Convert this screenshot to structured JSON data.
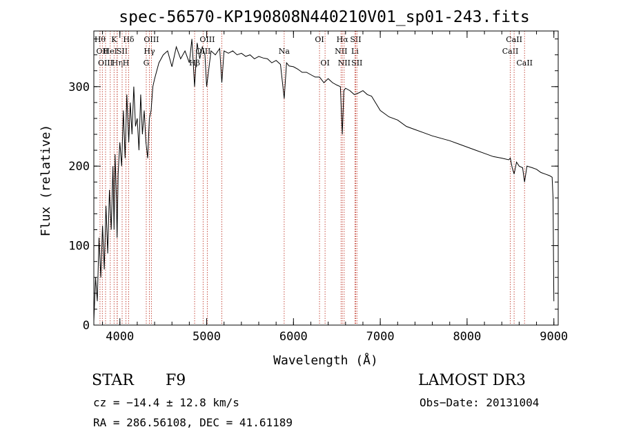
{
  "chart_data": {
    "type": "line",
    "title": "spec-56570-KP190808N440210V01_sp01-243.fits",
    "xlabel": "Wavelength (Å)",
    "ylabel": "Flux (relative)",
    "xlim": [
      3700,
      9050
    ],
    "ylim": [
      0,
      370
    ],
    "xticks": [
      4000,
      5000,
      6000,
      7000,
      8000,
      9000
    ],
    "yticks": [
      0,
      100,
      200,
      300
    ],
    "series": [
      {
        "name": "flux",
        "x": [
          3700,
          3720,
          3740,
          3760,
          3780,
          3800,
          3820,
          3840,
          3860,
          3880,
          3900,
          3920,
          3933,
          3945,
          3960,
          3968,
          3980,
          4000,
          4020,
          4040,
          4060,
          4080,
          4102,
          4120,
          4140,
          4160,
          4180,
          4200,
          4220,
          4240,
          4260,
          4280,
          4300,
          4320,
          4340,
          4360,
          4380,
          4400,
          4450,
          4500,
          4550,
          4600,
          4650,
          4700,
          4750,
          4800,
          4830,
          4861,
          4890,
          4920,
          4950,
          4980,
          5000,
          5050,
          5100,
          5150,
          5175,
          5200,
          5250,
          5300,
          5350,
          5400,
          5450,
          5500,
          5550,
          5600,
          5650,
          5700,
          5750,
          5800,
          5850,
          5893,
          5920,
          5950,
          6000,
          6050,
          6100,
          6150,
          6200,
          6250,
          6300,
          6350,
          6400,
          6450,
          6500,
          6540,
          6563,
          6580,
          6600,
          6650,
          6700,
          6750,
          6800,
          6850,
          6900,
          7000,
          7100,
          7200,
          7300,
          7400,
          7500,
          7600,
          7700,
          7800,
          7900,
          8000,
          8100,
          8200,
          8300,
          8400,
          8480,
          8498,
          8520,
          8542,
          8570,
          8600,
          8640,
          8662,
          8690,
          8750,
          8800,
          8850,
          8900,
          8950,
          8980,
          8990,
          9000
        ],
        "values": [
          5,
          60,
          30,
          110,
          60,
          125,
          70,
          150,
          90,
          170,
          120,
          200,
          120,
          215,
          160,
          110,
          190,
          230,
          200,
          270,
          210,
          290,
          230,
          280,
          240,
          300,
          250,
          260,
          220,
          290,
          240,
          270,
          230,
          210,
          260,
          270,
          300,
          310,
          330,
          340,
          345,
          325,
          350,
          335,
          345,
          330,
          360,
          300,
          355,
          335,
          350,
          340,
          300,
          345,
          340,
          348,
          305,
          345,
          342,
          345,
          340,
          342,
          338,
          340,
          335,
          338,
          336,
          335,
          330,
          333,
          328,
          285,
          330,
          326,
          325,
          322,
          318,
          318,
          315,
          312,
          312,
          305,
          310,
          305,
          302,
          300,
          240,
          295,
          298,
          295,
          290,
          292,
          295,
          290,
          288,
          270,
          262,
          258,
          250,
          246,
          242,
          238,
          235,
          232,
          228,
          224,
          220,
          216,
          212,
          210,
          208,
          210,
          198,
          190,
          205,
          200,
          198,
          180,
          200,
          198,
          196,
          192,
          190,
          188,
          186,
          160,
          30
        ]
      }
    ],
    "line_markers": [
      {
        "wl": 3771,
        "row": 1,
        "label": "Hθ"
      },
      {
        "wl": 3798,
        "row": 2,
        "label": "OII"
      },
      {
        "wl": 3835,
        "row": 3,
        "label": "OIII"
      },
      {
        "wl": 3889,
        "row": 2,
        "label": "HeI"
      },
      {
        "wl": 3933,
        "row": 1,
        "label": "K"
      },
      {
        "wl": 3970,
        "row": 3,
        "label": "Hη"
      },
      {
        "wl": 3968,
        "row": 1,
        "label": ""
      },
      {
        "wl": 4026,
        "row": 2,
        "label": "SII"
      },
      {
        "wl": 4101,
        "row": 1,
        "label": "Hδ"
      },
      {
        "wl": 4070,
        "row": 3,
        "label": "H"
      },
      {
        "wl": 4304,
        "row": 3,
        "label": "G"
      },
      {
        "wl": 4340,
        "row": 2,
        "label": "Hγ"
      },
      {
        "wl": 4363,
        "row": 1,
        "label": "OIII"
      },
      {
        "wl": 4861,
        "row": 3,
        "label": "Hβ"
      },
      {
        "wl": 4959,
        "row": 2,
        "label": "OIII"
      },
      {
        "wl": 5007,
        "row": 1,
        "label": "OIII"
      },
      {
        "wl": 5175,
        "row": 0,
        "label": ""
      },
      {
        "wl": 5893,
        "row": 2,
        "label": "Na"
      },
      {
        "wl": 6300,
        "row": 1,
        "label": "OI"
      },
      {
        "wl": 6364,
        "row": 3,
        "label": "OI"
      },
      {
        "wl": 6548,
        "row": 2,
        "label": "NII"
      },
      {
        "wl": 6563,
        "row": 1,
        "label": "Hα"
      },
      {
        "wl": 6584,
        "row": 3,
        "label": "NII"
      },
      {
        "wl": 6708,
        "row": 2,
        "label": "Li"
      },
      {
        "wl": 6717,
        "row": 1,
        "label": "SII"
      },
      {
        "wl": 6731,
        "row": 3,
        "label": "SII"
      },
      {
        "wl": 8498,
        "row": 2,
        "label": "CaII"
      },
      {
        "wl": 8542,
        "row": 1,
        "label": "CaII"
      },
      {
        "wl": 8662,
        "row": 3,
        "label": "CaII"
      }
    ]
  },
  "info": {
    "object_class": "STAR",
    "subclass": "F9",
    "survey": "LAMOST DR3",
    "redshift": "cz = −14.4 ± 12.8 km/s",
    "obs_date": "Obs−Date: 20131004",
    "coordinates": "RA = 286.56108, DEC =  41.61189"
  }
}
